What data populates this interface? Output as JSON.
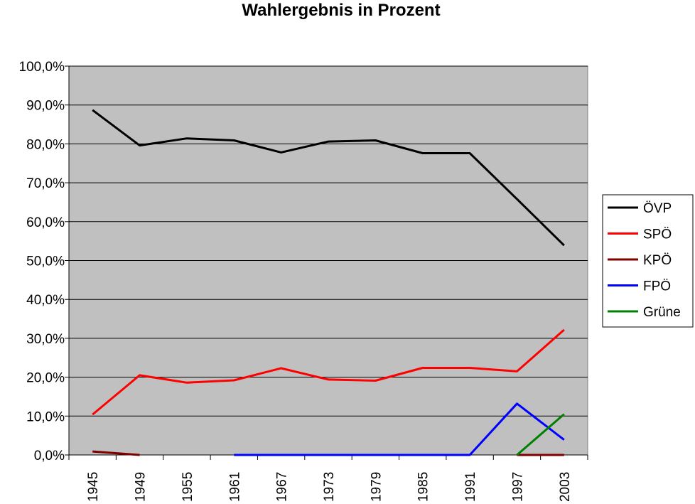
{
  "chart_data": {
    "type": "line",
    "title": "Wahlergebnis in Prozent",
    "xlabel": "",
    "ylabel": "",
    "categories": [
      "1945",
      "1949",
      "1955",
      "1961",
      "1967",
      "1973",
      "1979",
      "1985",
      "1991",
      "1997",
      "2003"
    ],
    "ylim": [
      0,
      100
    ],
    "ytick_labels": [
      "0,0%",
      "10,0%",
      "20,0%",
      "30,0%",
      "40,0%",
      "50,0%",
      "60,0%",
      "70,0%",
      "80,0%",
      "90,0%",
      "100,0%"
    ],
    "grid": true,
    "plot_background": "#c0c0c0",
    "legend_position": "right",
    "series": [
      {
        "name": "ÖVP",
        "color": "#000000",
        "values": [
          88.7,
          79.6,
          81.4,
          80.9,
          77.8,
          80.6,
          80.9,
          77.6,
          77.6,
          65.8,
          53.9
        ]
      },
      {
        "name": "SPÖ",
        "color": "#ff0000",
        "values": [
          10.4,
          20.5,
          18.6,
          19.2,
          22.3,
          19.4,
          19.1,
          22.4,
          22.4,
          21.5,
          32.2
        ]
      },
      {
        "name": "KPÖ",
        "color": "#800000",
        "values": [
          0.9,
          0.0,
          null,
          null,
          null,
          null,
          null,
          null,
          null,
          0.0,
          0.0
        ]
      },
      {
        "name": "FPÖ",
        "color": "#0000ff",
        "values": [
          null,
          null,
          null,
          0.0,
          0.0,
          0.0,
          0.0,
          0.0,
          0.0,
          13.2,
          3.9
        ]
      },
      {
        "name": "Grüne",
        "color": "#008000",
        "values": [
          null,
          null,
          null,
          null,
          null,
          null,
          null,
          null,
          null,
          0.0,
          10.5
        ]
      }
    ]
  }
}
